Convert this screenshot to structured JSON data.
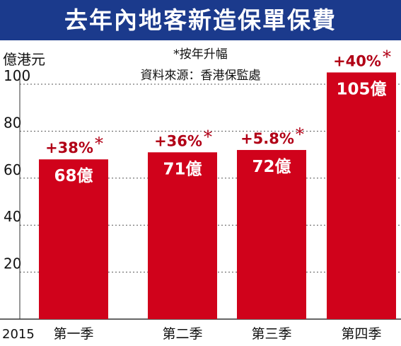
{
  "colors": {
    "title_bg": "#1b3a8c",
    "bar": "#d0021b",
    "pct": "#b10016",
    "asterisk": "#b10016"
  },
  "title": "去年內地客新造保單保費",
  "notes": {
    "line1": "*按年升幅",
    "line2": "資料來源：香港保監處"
  },
  "chart_data": {
    "type": "bar",
    "title": "去年內地客新造保單保費",
    "ylabel": "億港元",
    "xlabel": "",
    "year_label": "2015",
    "categories": [
      "第一季",
      "第二季",
      "第三季",
      "第四季"
    ],
    "values": [
      68,
      71,
      72,
      105
    ],
    "value_labels": [
      "68億",
      "71億",
      "72億",
      "105億"
    ],
    "growth_labels": [
      "+38%",
      "+36%",
      "+5.8%",
      "+40%"
    ],
    "asterisk": "*",
    "yticks": [
      20,
      40,
      60,
      80,
      100
    ],
    "ylim": [
      0,
      110
    ],
    "grid": true
  }
}
